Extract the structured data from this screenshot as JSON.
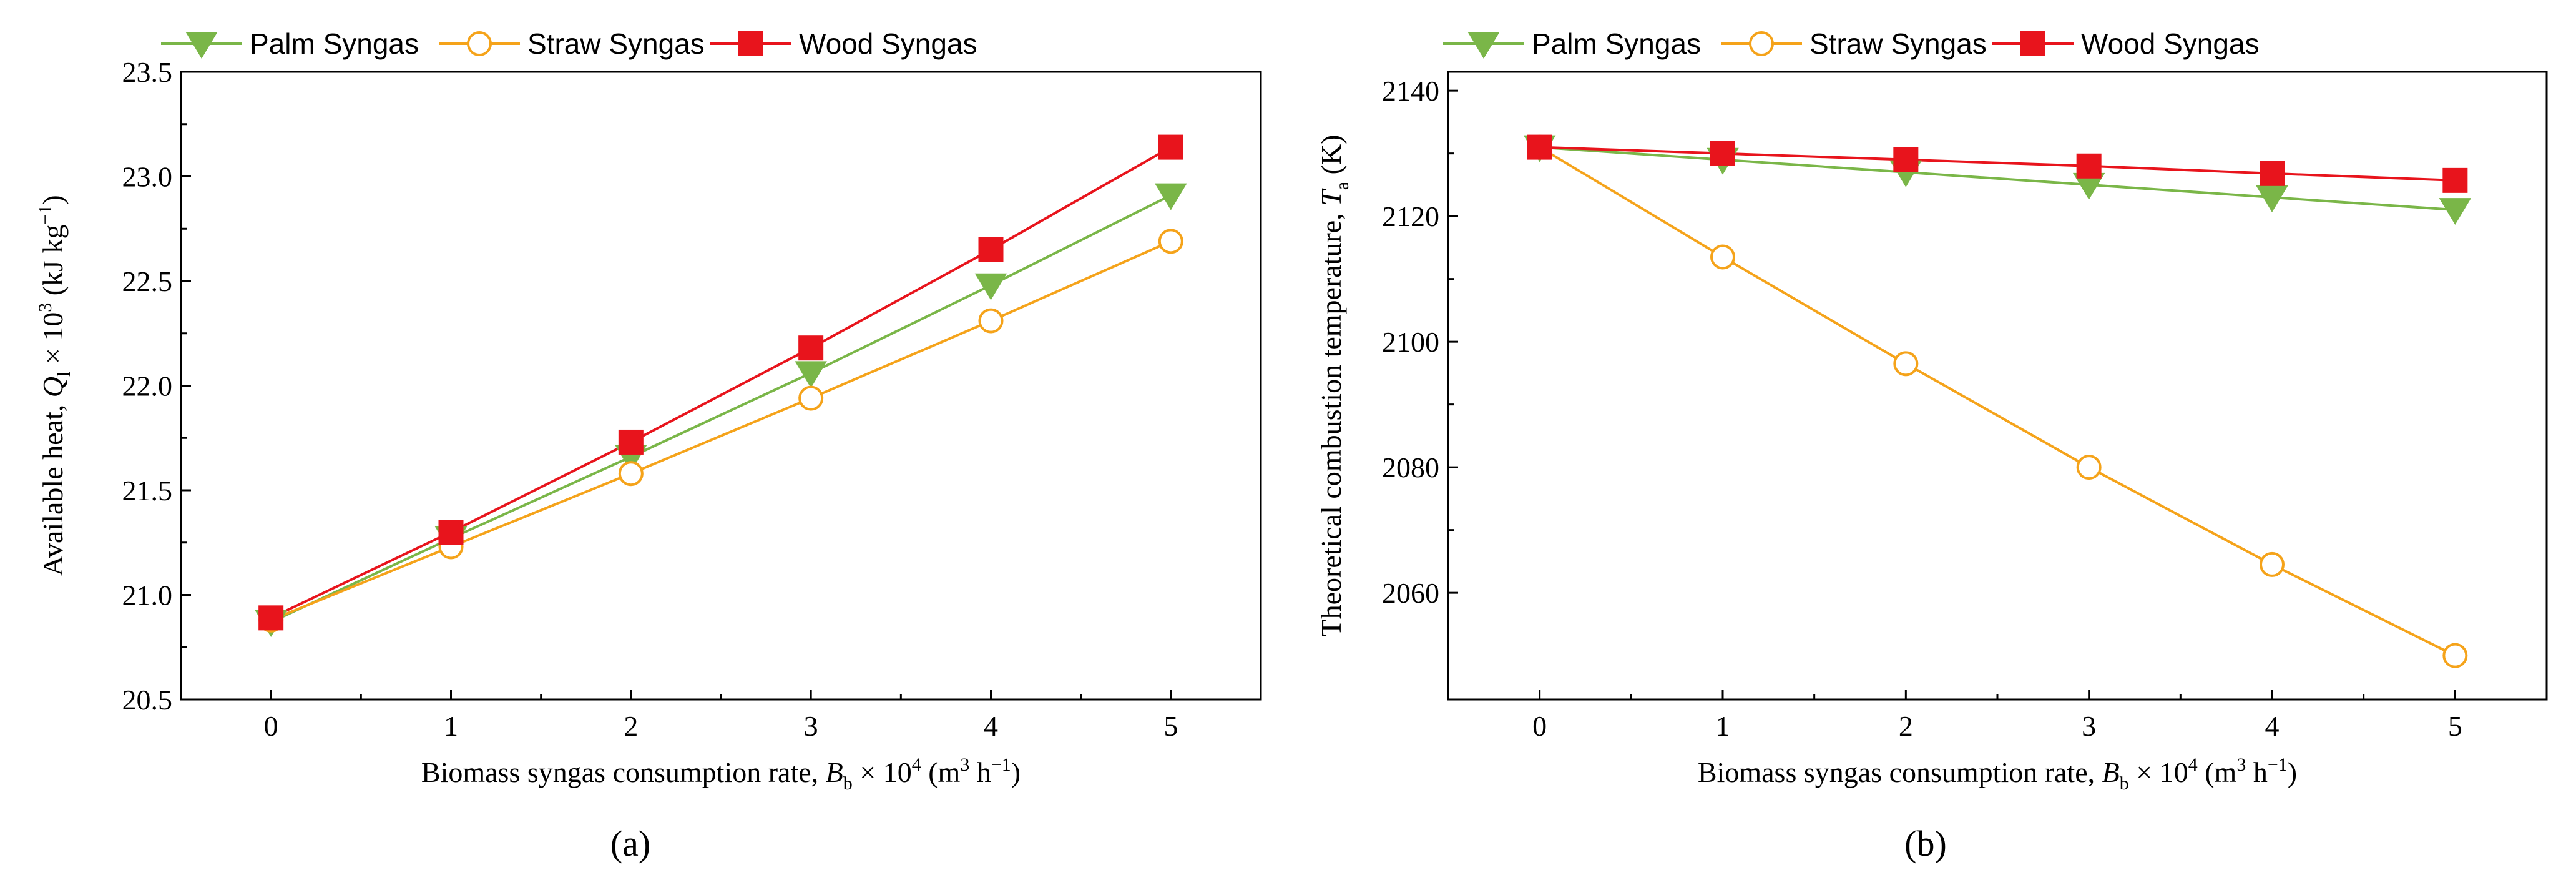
{
  "figure": {
    "panel_labels": [
      "(a)",
      "(b)"
    ]
  },
  "chart_data": [
    {
      "id": "a",
      "type": "line",
      "panel_label_letter": "a",
      "title": "",
      "xlabel": {
        "prefix": "Biomass syngas consumption rate, ",
        "var": "B",
        "sub": "b",
        "mid": " × 10",
        "sup1": "4",
        "unit_open": " (m",
        "sup2": "3",
        "unit_mid": " h",
        "sup3": "−1",
        "unit_close": ")"
      },
      "ylabel": {
        "prefix": "Available heat, ",
        "var": "Q",
        "sub": "l",
        "mid": " × 10",
        "sup1": "3",
        "unit_open": " (kJ kg",
        "sup2": "−1",
        "unit_close": ")"
      },
      "x": [
        0,
        1,
        2,
        3,
        4,
        5
      ],
      "x_ticks": [
        "0",
        "1",
        "2",
        "3",
        "4",
        "5"
      ],
      "xlim": [
        -0.5,
        5.5
      ],
      "ylim": [
        20.5,
        23.5
      ],
      "y_ticks": [
        20.5,
        21.0,
        21.5,
        22.0,
        22.5,
        23.0,
        23.5
      ],
      "y_tick_labels": [
        "20.5",
        "21.0",
        "21.5",
        "22.0",
        "22.5",
        "23.0",
        "23.5"
      ],
      "grid": false,
      "legend_position": "top-left above plot",
      "series": [
        {
          "name": "Palm Syngas",
          "color": "#7ab648",
          "marker": "triangle-down",
          "values": [
            20.87,
            21.27,
            21.66,
            22.06,
            22.48,
            22.91
          ]
        },
        {
          "name": "Straw Syngas",
          "color": "#f5a31a",
          "marker": "circle-open",
          "values": [
            20.88,
            21.23,
            21.58,
            21.94,
            22.31,
            22.69
          ]
        },
        {
          "name": "Wood Syngas",
          "color": "#e8141c",
          "marker": "square",
          "values": [
            20.89,
            21.3,
            21.73,
            22.18,
            22.65,
            23.14
          ]
        }
      ]
    },
    {
      "id": "b",
      "type": "line",
      "panel_label_letter": "b",
      "title": "",
      "xlabel": {
        "prefix": "Biomass syngas consumption rate, ",
        "var": "B",
        "sub": "b",
        "mid": " × 10",
        "sup1": "4",
        "unit_open": " (m",
        "sup2": "3",
        "unit_mid": " h",
        "sup3": "−1",
        "unit_close": ")"
      },
      "ylabel": {
        "prefix": "Theoretical combustion temperature, ",
        "var": "T",
        "sub": "a",
        "unit_close": " (K)"
      },
      "x": [
        0,
        1,
        2,
        3,
        4,
        5
      ],
      "x_ticks": [
        "0",
        "1",
        "2",
        "3",
        "4",
        "5"
      ],
      "xlim": [
        -0.5,
        5.5
      ],
      "ylim": [
        2043,
        2143
      ],
      "y_ticks": [
        2060,
        2080,
        2100,
        2120,
        2140
      ],
      "y_tick_labels": [
        "2060",
        "2080",
        "2100",
        "2120",
        "2140"
      ],
      "grid": false,
      "legend_position": "top-left above plot",
      "series": [
        {
          "name": "Palm Syngas",
          "color": "#7ab648",
          "marker": "triangle-down",
          "values": [
            2131,
            2129,
            2127,
            2125,
            2123,
            2121
          ]
        },
        {
          "name": "Straw Syngas",
          "color": "#f5a31a",
          "marker": "circle-open",
          "values": [
            2131,
            2113.5,
            2096.5,
            2080,
            2064.5,
            2050
          ]
        },
        {
          "name": "Wood Syngas",
          "color": "#e8141c",
          "marker": "square",
          "values": [
            2131,
            2130,
            2129,
            2128,
            2126.8,
            2125.7
          ]
        }
      ]
    }
  ]
}
